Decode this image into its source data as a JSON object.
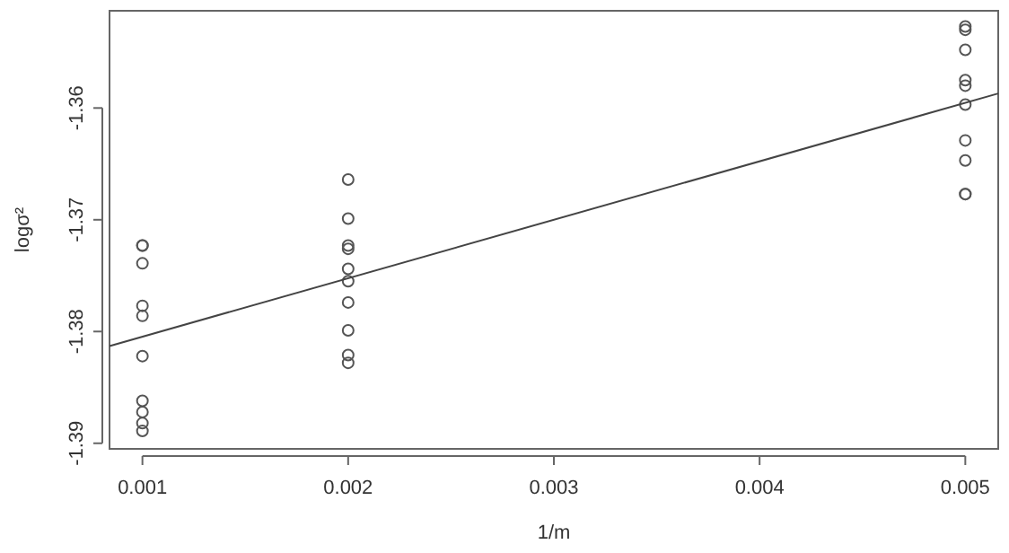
{
  "chart_data": {
    "type": "scatter",
    "xlabel": "1/m",
    "ylabel": "logσ²",
    "xlim": [
      0.00084,
      0.00516
    ],
    "ylim": [
      -1.3905,
      -1.3513
    ],
    "xticks": [
      0.001,
      0.002,
      0.003,
      0.004,
      0.005
    ],
    "yticks": [
      -1.39,
      -1.38,
      -1.37,
      -1.36
    ],
    "grid": false,
    "marker": "circle",
    "series": [
      {
        "color": "#555555",
        "x": [
          0.001,
          0.001,
          0.001,
          0.001,
          0.001,
          0.001,
          0.001,
          0.001,
          0.001,
          0.001,
          0.002,
          0.002,
          0.002,
          0.002,
          0.002,
          0.002,
          0.002,
          0.002,
          0.002,
          0.002,
          0.005,
          0.005,
          0.005,
          0.005,
          0.005,
          0.005,
          0.005,
          0.005,
          0.005,
          0.005
        ],
        "values": [
          -1.3723,
          -1.3723,
          -1.3739,
          -1.3777,
          -1.3786,
          -1.3822,
          -1.3862,
          -1.3872,
          -1.3882,
          -1.3889,
          -1.3664,
          -1.3699,
          -1.3723,
          -1.3726,
          -1.3744,
          -1.3755,
          -1.3774,
          -1.3799,
          -1.3821,
          -1.3828,
          -1.3527,
          -1.353,
          -1.3548,
          -1.3575,
          -1.358,
          -1.3597,
          -1.3629,
          -1.3647,
          -1.3677,
          -1.3677
        ]
      },
      {
        "type": "line",
        "color": "#444444",
        "marker": "none",
        "x": [
          0.00084,
          0.00516
        ],
        "values": [
          -1.3813,
          -1.3587
        ]
      }
    ]
  }
}
